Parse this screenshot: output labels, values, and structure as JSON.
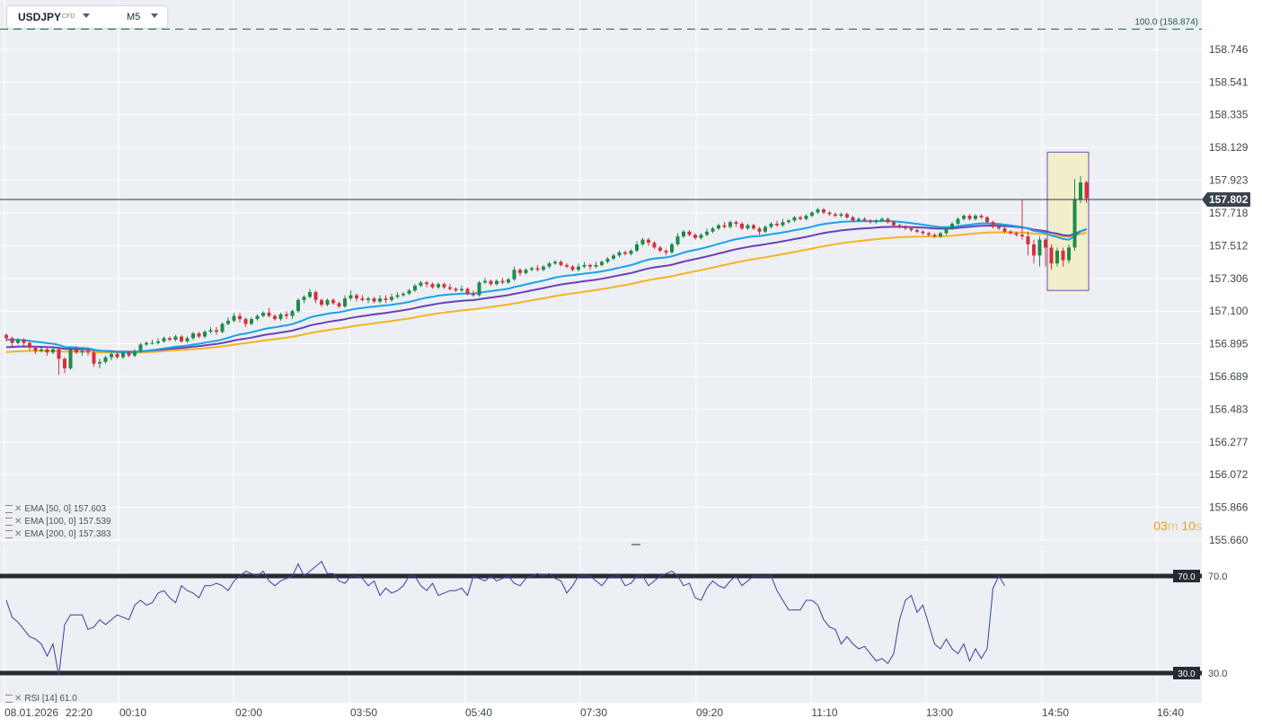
{
  "header": {
    "symbol": "USDJPY",
    "symbol_type": "CFD",
    "timeframe": "M5"
  },
  "chart_data": {
    "type": "candlestick",
    "price_axis": {
      "ticks": [
        "158.746",
        "158.541",
        "158.335",
        "158.129",
        "157.923",
        "157.718",
        "157.512",
        "157.306",
        "157.100",
        "156.895",
        "156.689",
        "156.483",
        "156.277",
        "156.072",
        "155.866",
        "155.660"
      ],
      "range": [
        155.66,
        158.9
      ]
    },
    "time_axis": {
      "date_label": "08.01.2026",
      "ticks": [
        "22:20",
        "00:10",
        "02:00",
        "03:50",
        "05:40",
        "07:30",
        "09:20",
        "11:10",
        "13:00",
        "14:50",
        "16:40"
      ]
    },
    "current_price": "157.802",
    "fib_level": {
      "label": "100.0 (158.874)",
      "price": 158.874
    },
    "highlight_box": {
      "from_price": 157.23,
      "to_price": 158.1
    },
    "indicators": {
      "ema50": {
        "label": "EMA [50, 0]",
        "value": "157.603",
        "color": "#1aa3e8"
      },
      "ema100": {
        "label": "EMA [100, 0]",
        "value": "157.539",
        "color": "#6b3fb8"
      },
      "ema200": {
        "label": "EMA [200, 0]",
        "value": "157.383",
        "color": "#f5b324"
      }
    },
    "rsi": {
      "label": "RSI [14]",
      "value": "61.0",
      "levels": [
        "70.0",
        "30.0"
      ],
      "color": "#3a3fa0",
      "points": [
        60,
        53,
        51,
        48,
        45,
        44,
        42,
        37,
        42,
        29,
        50,
        54,
        54,
        54,
        48,
        49,
        52,
        50,
        52,
        54,
        53,
        52,
        58,
        60,
        58,
        59,
        63,
        64,
        61,
        59,
        66,
        64,
        63,
        61,
        66,
        66,
        67,
        66,
        64,
        68,
        70,
        72,
        71,
        70,
        72,
        68,
        66,
        68,
        69,
        70,
        75,
        70,
        72,
        74,
        76,
        71,
        71,
        68,
        67,
        70,
        70,
        69,
        66,
        68,
        62,
        65,
        63,
        64,
        66,
        70,
        70,
        66,
        64,
        67,
        62,
        63,
        64,
        64,
        65,
        62,
        70,
        69,
        68,
        70,
        68,
        69,
        70,
        67,
        66,
        69,
        70,
        71,
        70,
        71,
        69,
        68,
        63,
        66,
        70,
        70,
        70,
        68,
        66,
        69,
        70,
        70,
        66,
        67,
        70,
        70,
        66,
        68,
        70,
        71,
        72,
        70,
        66,
        67,
        61,
        60,
        65,
        68,
        66,
        65,
        68,
        70,
        66,
        68,
        70,
        70,
        70,
        70,
        64,
        60,
        56,
        56,
        56,
        60,
        60,
        58,
        52,
        49,
        48,
        42,
        45,
        42,
        40,
        41,
        38,
        35,
        36,
        34,
        38,
        52,
        60,
        62,
        55,
        58,
        50,
        42,
        40,
        44,
        40,
        38,
        42,
        35,
        40,
        36,
        40,
        65,
        70,
        66
      ]
    },
    "candles": [
      [
        156.95,
        156.93,
        156.96,
        156.91
      ],
      [
        156.93,
        156.9,
        156.94,
        156.88
      ],
      [
        156.9,
        156.92,
        156.93,
        156.89
      ],
      [
        156.92,
        156.9,
        156.93,
        156.87
      ],
      [
        156.9,
        156.87,
        156.91,
        156.85
      ],
      [
        156.87,
        156.85,
        156.88,
        156.83
      ],
      [
        156.85,
        156.86,
        156.87,
        156.84
      ],
      [
        156.86,
        156.84,
        156.88,
        156.82
      ],
      [
        156.84,
        156.86,
        156.87,
        156.83
      ],
      [
        156.86,
        156.8,
        156.87,
        156.7
      ],
      [
        156.8,
        156.74,
        156.81,
        156.71
      ],
      [
        156.74,
        156.86,
        156.87,
        156.73
      ],
      [
        156.86,
        156.84,
        156.88,
        156.83
      ],
      [
        156.84,
        156.85,
        156.87,
        156.82
      ],
      [
        156.85,
        156.84,
        156.87,
        156.82
      ],
      [
        156.84,
        156.77,
        156.85,
        156.75
      ],
      [
        156.77,
        156.78,
        156.8,
        156.74
      ],
      [
        156.78,
        156.81,
        156.82,
        156.77
      ],
      [
        156.81,
        156.83,
        156.84,
        156.79
      ],
      [
        156.83,
        156.81,
        156.84,
        156.8
      ],
      [
        156.81,
        156.84,
        156.85,
        156.8
      ],
      [
        156.84,
        156.82,
        156.85,
        156.81
      ],
      [
        156.82,
        156.85,
        156.86,
        156.81
      ],
      [
        156.85,
        156.89,
        156.9,
        156.84
      ],
      [
        156.89,
        156.9,
        156.91,
        156.88
      ],
      [
        156.9,
        156.9,
        156.92,
        156.89
      ],
      [
        156.9,
        156.91,
        156.93,
        156.89
      ],
      [
        156.91,
        156.93,
        156.94,
        156.9
      ],
      [
        156.93,
        156.92,
        156.94,
        156.91
      ],
      [
        156.92,
        156.94,
        156.95,
        156.91
      ],
      [
        156.94,
        156.91,
        156.95,
        156.9
      ],
      [
        156.91,
        156.93,
        156.94,
        156.9
      ],
      [
        156.93,
        156.96,
        156.97,
        156.92
      ],
      [
        156.96,
        156.94,
        156.97,
        156.93
      ],
      [
        156.94,
        156.97,
        156.98,
        156.93
      ],
      [
        156.97,
        156.98,
        157.0,
        156.96
      ],
      [
        156.98,
        156.97,
        157.0,
        156.95
      ],
      [
        156.97,
        157.02,
        157.03,
        156.96
      ],
      [
        157.02,
        157.04,
        157.06,
        157.01
      ],
      [
        157.04,
        157.07,
        157.09,
        157.03
      ],
      [
        157.07,
        157.05,
        157.09,
        157.03
      ],
      [
        157.05,
        157.02,
        157.06,
        157.0
      ],
      [
        157.02,
        157.05,
        157.06,
        157.01
      ],
      [
        157.05,
        157.07,
        157.08,
        157.04
      ],
      [
        157.07,
        157.09,
        157.1,
        157.06
      ],
      [
        157.09,
        157.07,
        157.12,
        157.06
      ],
      [
        157.07,
        157.05,
        157.08,
        157.04
      ],
      [
        157.05,
        157.08,
        157.09,
        157.04
      ],
      [
        157.08,
        157.07,
        157.1,
        157.05
      ],
      [
        157.07,
        157.1,
        157.11,
        157.05
      ],
      [
        157.1,
        157.17,
        157.18,
        157.09
      ],
      [
        157.17,
        157.19,
        157.2,
        157.15
      ],
      [
        157.19,
        157.22,
        157.24,
        157.18
      ],
      [
        157.22,
        157.17,
        157.23,
        157.15
      ],
      [
        157.17,
        157.14,
        157.18,
        157.13
      ],
      [
        157.14,
        157.17,
        157.18,
        157.13
      ],
      [
        157.17,
        157.15,
        157.18,
        157.14
      ],
      [
        157.15,
        157.13,
        157.16,
        157.12
      ],
      [
        157.13,
        157.18,
        157.2,
        157.12
      ],
      [
        157.18,
        157.2,
        157.23,
        157.17
      ],
      [
        157.2,
        157.18,
        157.21,
        157.16
      ],
      [
        157.18,
        157.17,
        157.2,
        157.16
      ],
      [
        157.17,
        157.18,
        157.19,
        157.15
      ],
      [
        157.18,
        157.16,
        157.19,
        157.15
      ],
      [
        157.16,
        157.18,
        157.2,
        157.15
      ],
      [
        157.18,
        157.17,
        157.2,
        157.15
      ],
      [
        157.17,
        157.19,
        157.21,
        157.16
      ],
      [
        157.19,
        157.2,
        157.22,
        157.18
      ],
      [
        157.2,
        157.21,
        157.22,
        157.19
      ],
      [
        157.21,
        157.23,
        157.24,
        157.2
      ],
      [
        157.23,
        157.26,
        157.27,
        157.22
      ],
      [
        157.26,
        157.28,
        157.29,
        157.25
      ],
      [
        157.28,
        157.27,
        157.29,
        157.25
      ],
      [
        157.27,
        157.25,
        157.28,
        157.24
      ],
      [
        157.25,
        157.27,
        157.28,
        157.24
      ],
      [
        157.27,
        157.25,
        157.28,
        157.24
      ],
      [
        157.25,
        157.24,
        157.27,
        157.23
      ],
      [
        157.24,
        157.23,
        157.25,
        157.22
      ],
      [
        157.23,
        157.24,
        157.26,
        157.22
      ],
      [
        157.24,
        157.21,
        157.25,
        157.2
      ],
      [
        157.21,
        157.2,
        157.23,
        157.19
      ],
      [
        157.2,
        157.28,
        157.29,
        157.19
      ],
      [
        157.28,
        157.29,
        157.31,
        157.27
      ],
      [
        157.29,
        157.27,
        157.3,
        157.26
      ],
      [
        157.27,
        157.29,
        157.3,
        157.26
      ],
      [
        157.29,
        157.28,
        157.31,
        157.27
      ],
      [
        157.28,
        157.3,
        157.31,
        157.27
      ],
      [
        157.3,
        157.36,
        157.38,
        157.29
      ],
      [
        157.36,
        157.34,
        157.37,
        157.32
      ],
      [
        157.34,
        157.36,
        157.37,
        157.33
      ],
      [
        157.36,
        157.37,
        157.38,
        157.35
      ],
      [
        157.37,
        157.36,
        157.39,
        157.35
      ],
      [
        157.36,
        157.38,
        157.39,
        157.35
      ],
      [
        157.38,
        157.4,
        157.41,
        157.37
      ],
      [
        157.4,
        157.41,
        157.42,
        157.39
      ],
      [
        157.41,
        157.39,
        157.42,
        157.38
      ],
      [
        157.39,
        157.38,
        157.4,
        157.37
      ],
      [
        157.38,
        157.36,
        157.39,
        157.35
      ],
      [
        157.36,
        157.38,
        157.4,
        157.35
      ],
      [
        157.38,
        157.39,
        157.41,
        157.37
      ],
      [
        157.39,
        157.38,
        157.4,
        157.36
      ],
      [
        157.38,
        157.39,
        157.41,
        157.37
      ],
      [
        157.39,
        157.41,
        157.42,
        157.38
      ],
      [
        157.41,
        157.43,
        157.44,
        157.4
      ],
      [
        157.43,
        157.45,
        157.46,
        157.42
      ],
      [
        157.45,
        157.47,
        157.48,
        157.44
      ],
      [
        157.47,
        157.46,
        157.48,
        157.45
      ],
      [
        157.46,
        157.48,
        157.49,
        157.45
      ],
      [
        157.48,
        157.52,
        157.54,
        157.47
      ],
      [
        157.52,
        157.55,
        157.56,
        157.51
      ],
      [
        157.55,
        157.53,
        157.56,
        157.51
      ],
      [
        157.53,
        157.5,
        157.54,
        157.49
      ],
      [
        157.5,
        157.48,
        157.51,
        157.47
      ],
      [
        157.48,
        157.47,
        157.49,
        157.45
      ],
      [
        157.47,
        157.52,
        157.53,
        157.46
      ],
      [
        157.52,
        157.57,
        157.59,
        157.51
      ],
      [
        157.57,
        157.6,
        157.61,
        157.56
      ],
      [
        157.6,
        157.58,
        157.61,
        157.57
      ],
      [
        157.58,
        157.56,
        157.59,
        157.55
      ],
      [
        157.56,
        157.58,
        157.59,
        157.55
      ],
      [
        157.58,
        157.6,
        157.62,
        157.57
      ],
      [
        157.6,
        157.62,
        157.63,
        157.59
      ],
      [
        157.62,
        157.64,
        157.65,
        157.61
      ],
      [
        157.64,
        157.63,
        157.66,
        157.62
      ],
      [
        157.63,
        157.66,
        157.67,
        157.62
      ],
      [
        157.66,
        157.65,
        157.67,
        157.63
      ],
      [
        157.65,
        157.62,
        157.66,
        157.61
      ],
      [
        157.62,
        157.64,
        157.65,
        157.61
      ],
      [
        157.64,
        157.62,
        157.65,
        157.61
      ],
      [
        157.62,
        157.6,
        157.63,
        157.58
      ],
      [
        157.6,
        157.63,
        157.64,
        157.59
      ],
      [
        157.63,
        157.65,
        157.66,
        157.62
      ],
      [
        157.65,
        157.64,
        157.67,
        157.63
      ],
      [
        157.64,
        157.66,
        157.68,
        157.63
      ],
      [
        157.66,
        157.67,
        157.68,
        157.65
      ],
      [
        157.67,
        157.69,
        157.7,
        157.66
      ],
      [
        157.69,
        157.68,
        157.7,
        157.67
      ],
      [
        157.68,
        157.7,
        157.71,
        157.67
      ],
      [
        157.7,
        157.72,
        157.73,
        157.69
      ],
      [
        157.72,
        157.74,
        157.75,
        157.71
      ],
      [
        157.74,
        157.72,
        157.75,
        157.71
      ],
      [
        157.72,
        157.71,
        157.73,
        157.7
      ],
      [
        157.71,
        157.7,
        157.72,
        157.69
      ],
      [
        157.7,
        157.71,
        157.72,
        157.69
      ],
      [
        157.71,
        157.69,
        157.72,
        157.68
      ],
      [
        157.69,
        157.67,
        157.7,
        157.66
      ],
      [
        157.67,
        157.68,
        157.69,
        157.66
      ],
      [
        157.68,
        157.67,
        157.69,
        157.66
      ],
      [
        157.67,
        157.66,
        157.68,
        157.65
      ],
      [
        157.66,
        157.67,
        157.68,
        157.65
      ],
      [
        157.67,
        157.68,
        157.69,
        157.66
      ],
      [
        157.68,
        157.66,
        157.69,
        157.65
      ],
      [
        157.66,
        157.64,
        157.67,
        157.63
      ],
      [
        157.64,
        157.63,
        157.65,
        157.62
      ],
      [
        157.63,
        157.62,
        157.64,
        157.61
      ],
      [
        157.62,
        157.61,
        157.63,
        157.6
      ],
      [
        157.61,
        157.6,
        157.62,
        157.59
      ],
      [
        157.6,
        157.59,
        157.61,
        157.58
      ],
      [
        157.59,
        157.58,
        157.6,
        157.57
      ],
      [
        157.58,
        157.57,
        157.59,
        157.56
      ],
      [
        157.57,
        157.59,
        157.6,
        157.56
      ],
      [
        157.59,
        157.62,
        157.63,
        157.58
      ],
      [
        157.62,
        157.65,
        157.66,
        157.61
      ],
      [
        157.65,
        157.68,
        157.69,
        157.64
      ],
      [
        157.68,
        157.7,
        157.71,
        157.67
      ],
      [
        157.7,
        157.68,
        157.71,
        157.67
      ],
      [
        157.68,
        157.7,
        157.71,
        157.67
      ],
      [
        157.7,
        157.69,
        157.71,
        157.68
      ],
      [
        157.69,
        157.66,
        157.7,
        157.65
      ],
      [
        157.66,
        157.63,
        157.67,
        157.62
      ],
      [
        157.63,
        157.62,
        157.64,
        157.61
      ],
      [
        157.62,
        157.6,
        157.64,
        157.59
      ],
      [
        157.6,
        157.59,
        157.61,
        157.58
      ],
      [
        157.59,
        157.58,
        157.6,
        157.57
      ],
      [
        157.58,
        157.57,
        157.8,
        157.55
      ],
      [
        157.57,
        157.52,
        157.6,
        157.45
      ],
      [
        157.52,
        157.45,
        157.55,
        157.4
      ],
      [
        157.45,
        157.55,
        157.57,
        157.38
      ],
      [
        157.55,
        157.5,
        157.56,
        157.38
      ],
      [
        157.5,
        157.4,
        157.52,
        157.36
      ],
      [
        157.4,
        157.48,
        157.5,
        157.38
      ],
      [
        157.48,
        157.42,
        157.5,
        157.38
      ],
      [
        157.42,
        157.5,
        157.52,
        157.4
      ],
      [
        157.5,
        157.8,
        157.93,
        157.48
      ],
      [
        157.8,
        157.91,
        157.95,
        157.78
      ],
      [
        157.91,
        157.81,
        157.92,
        157.78
      ]
    ]
  }
}
